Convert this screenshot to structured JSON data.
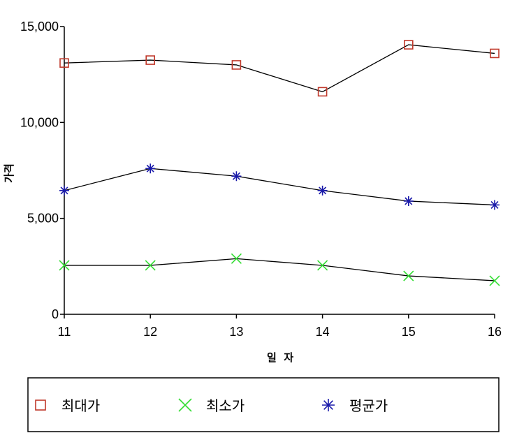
{
  "chart_data": {
    "type": "line",
    "title": "",
    "xlabel": "일  자",
    "ylabel": "가격",
    "categories": [
      "11",
      "12",
      "13",
      "14",
      "15",
      "16"
    ],
    "yticks": [
      "0",
      "5,000",
      "10,000",
      "15,000"
    ],
    "ytick_values": [
      0,
      5000,
      10000,
      15000
    ],
    "ylim": [
      0,
      15000
    ],
    "grid": false,
    "legend_position": "bottom",
    "series": [
      {
        "name": "최대가",
        "marker": "square",
        "color": "#c0392b",
        "values": [
          13100,
          13250,
          13000,
          11600,
          14050,
          13600
        ]
      },
      {
        "name": "최소가",
        "marker": "x",
        "color": "#33dd33",
        "values": [
          2550,
          2550,
          2900,
          2550,
          2000,
          1750
        ]
      },
      {
        "name": "평균가",
        "marker": "asterisk",
        "color": "#1a1aaa",
        "values": [
          6450,
          7600,
          7200,
          6450,
          5900,
          5700
        ]
      }
    ]
  }
}
